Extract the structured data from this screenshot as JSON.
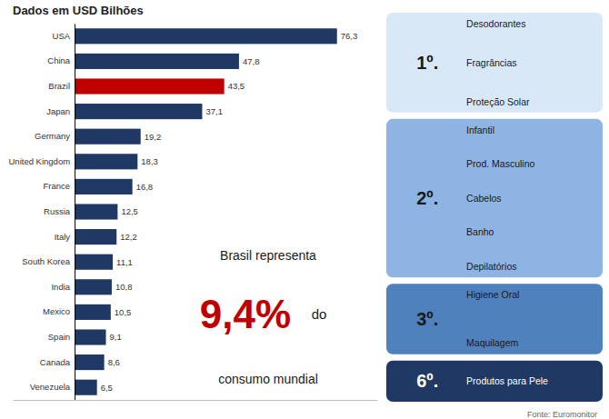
{
  "chart_data": {
    "type": "bar",
    "orientation": "horizontal",
    "title": "Dados em USD Bilhões",
    "categories": [
      "USA",
      "China",
      "Brazil",
      "Japan",
      "Germany",
      "United Kingdom",
      "France",
      "Russia",
      "Italy",
      "South Korea",
      "India",
      "Mexico",
      "Spain",
      "Canada",
      "Venezuela"
    ],
    "values": [
      76.3,
      47.8,
      43.5,
      37.1,
      19.2,
      18.3,
      16.8,
      12.5,
      12.2,
      11.1,
      10.8,
      10.5,
      9.1,
      8.6,
      6.5
    ],
    "value_labels": [
      "76,3",
      "47,8",
      "43,5",
      "37,1",
      "19,2",
      "18,3",
      "16,8",
      "12,5",
      "12,2",
      "11,1",
      "10,8",
      "10,5",
      "9,1",
      "8,6",
      "6,5"
    ],
    "colors": [
      "#1f3864",
      "#1f3864",
      "#c00000",
      "#1f3864",
      "#1f3864",
      "#1f3864",
      "#1f3864",
      "#1f3864",
      "#1f3864",
      "#1f3864",
      "#1f3864",
      "#1f3864",
      "#1f3864",
      "#1f3864",
      "#1f3864"
    ],
    "data_labels": true,
    "xlim": [
      -18,
      88
    ],
    "xticks": [],
    "tick_labels": false,
    "grid": false,
    "annotations": [
      {
        "text": "Brasil representa"
      },
      {
        "text": "9,4%",
        "color": "#c00000"
      },
      {
        "text": "do"
      },
      {
        "text": "consumo mundial"
      },
      {
        "text": "Fonte: Euromonitor"
      }
    ],
    "ranking": [
      {
        "rank": "1º.",
        "items": [
          "Desodorantes",
          "Fragrâncias",
          "Proteção Solar"
        ],
        "color": "#d9e8f7"
      },
      {
        "rank": "2º.",
        "items": [
          "Infantil",
          "Prod. Masculino",
          "Cabelos",
          "Banho",
          "Depilatórios"
        ],
        "color": "#8db4e2"
      },
      {
        "rank": "3º.",
        "items": [
          "Higiene Oral",
          "Maquilagem"
        ],
        "color": "#4f81bd"
      },
      {
        "rank": "6º.",
        "items": [
          "Produtos para Pele"
        ],
        "color": "#1f3864"
      }
    ]
  }
}
